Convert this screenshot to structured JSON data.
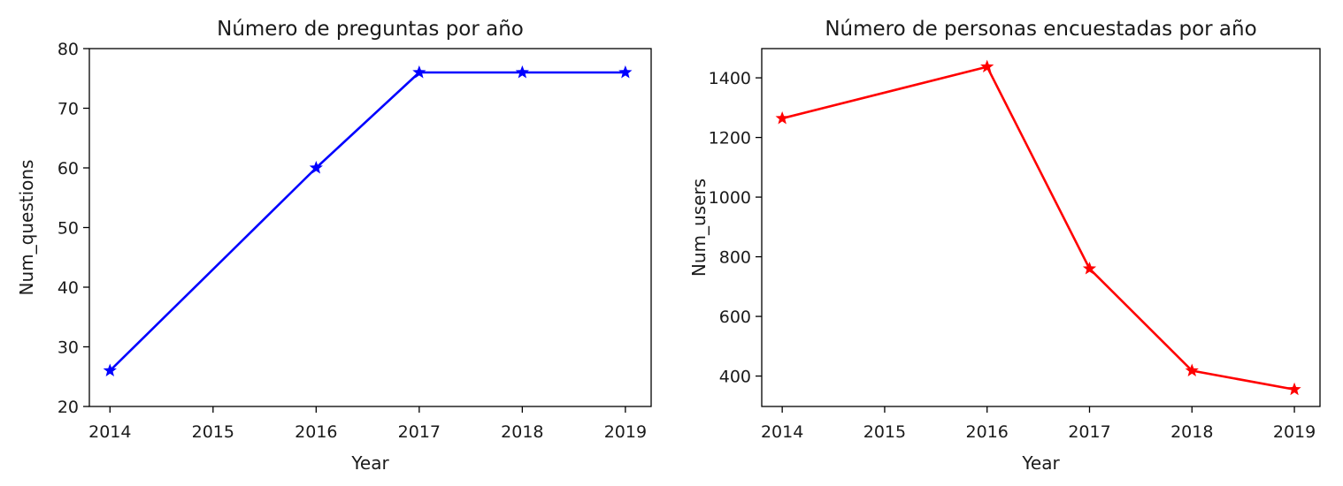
{
  "chart_data": [
    {
      "type": "line",
      "title": "Número de preguntas por año",
      "xlabel": "Year",
      "ylabel": "Num_questions",
      "xlim": [
        2013.8,
        2019.25
      ],
      "ylim": [
        20,
        80
      ],
      "xticks": [
        2014,
        2015,
        2016,
        2017,
        2018,
        2019
      ],
      "yticks": [
        20,
        30,
        40,
        50,
        60,
        70,
        80
      ],
      "grid": false,
      "marker": "star",
      "series": [
        {
          "color": "#0000ff",
          "x": [
            2014,
            2016,
            2017,
            2018,
            2019
          ],
          "y": [
            26,
            60,
            76,
            76,
            76
          ]
        }
      ]
    },
    {
      "type": "line",
      "title": "Número de personas encuestadas por año",
      "xlabel": "Year",
      "ylabel": "Num_users",
      "xlim": [
        2013.8,
        2019.25
      ],
      "ylim": [
        298,
        1498
      ],
      "xticks": [
        2014,
        2015,
        2016,
        2017,
        2018,
        2019
      ],
      "yticks": [
        400,
        600,
        800,
        1000,
        1200,
        1400
      ],
      "grid": false,
      "marker": "star",
      "series": [
        {
          "color": "#ff0000",
          "x": [
            2014,
            2016,
            2017,
            2018,
            2019
          ],
          "y": [
            1264,
            1437,
            760,
            418,
            355
          ]
        }
      ]
    }
  ]
}
